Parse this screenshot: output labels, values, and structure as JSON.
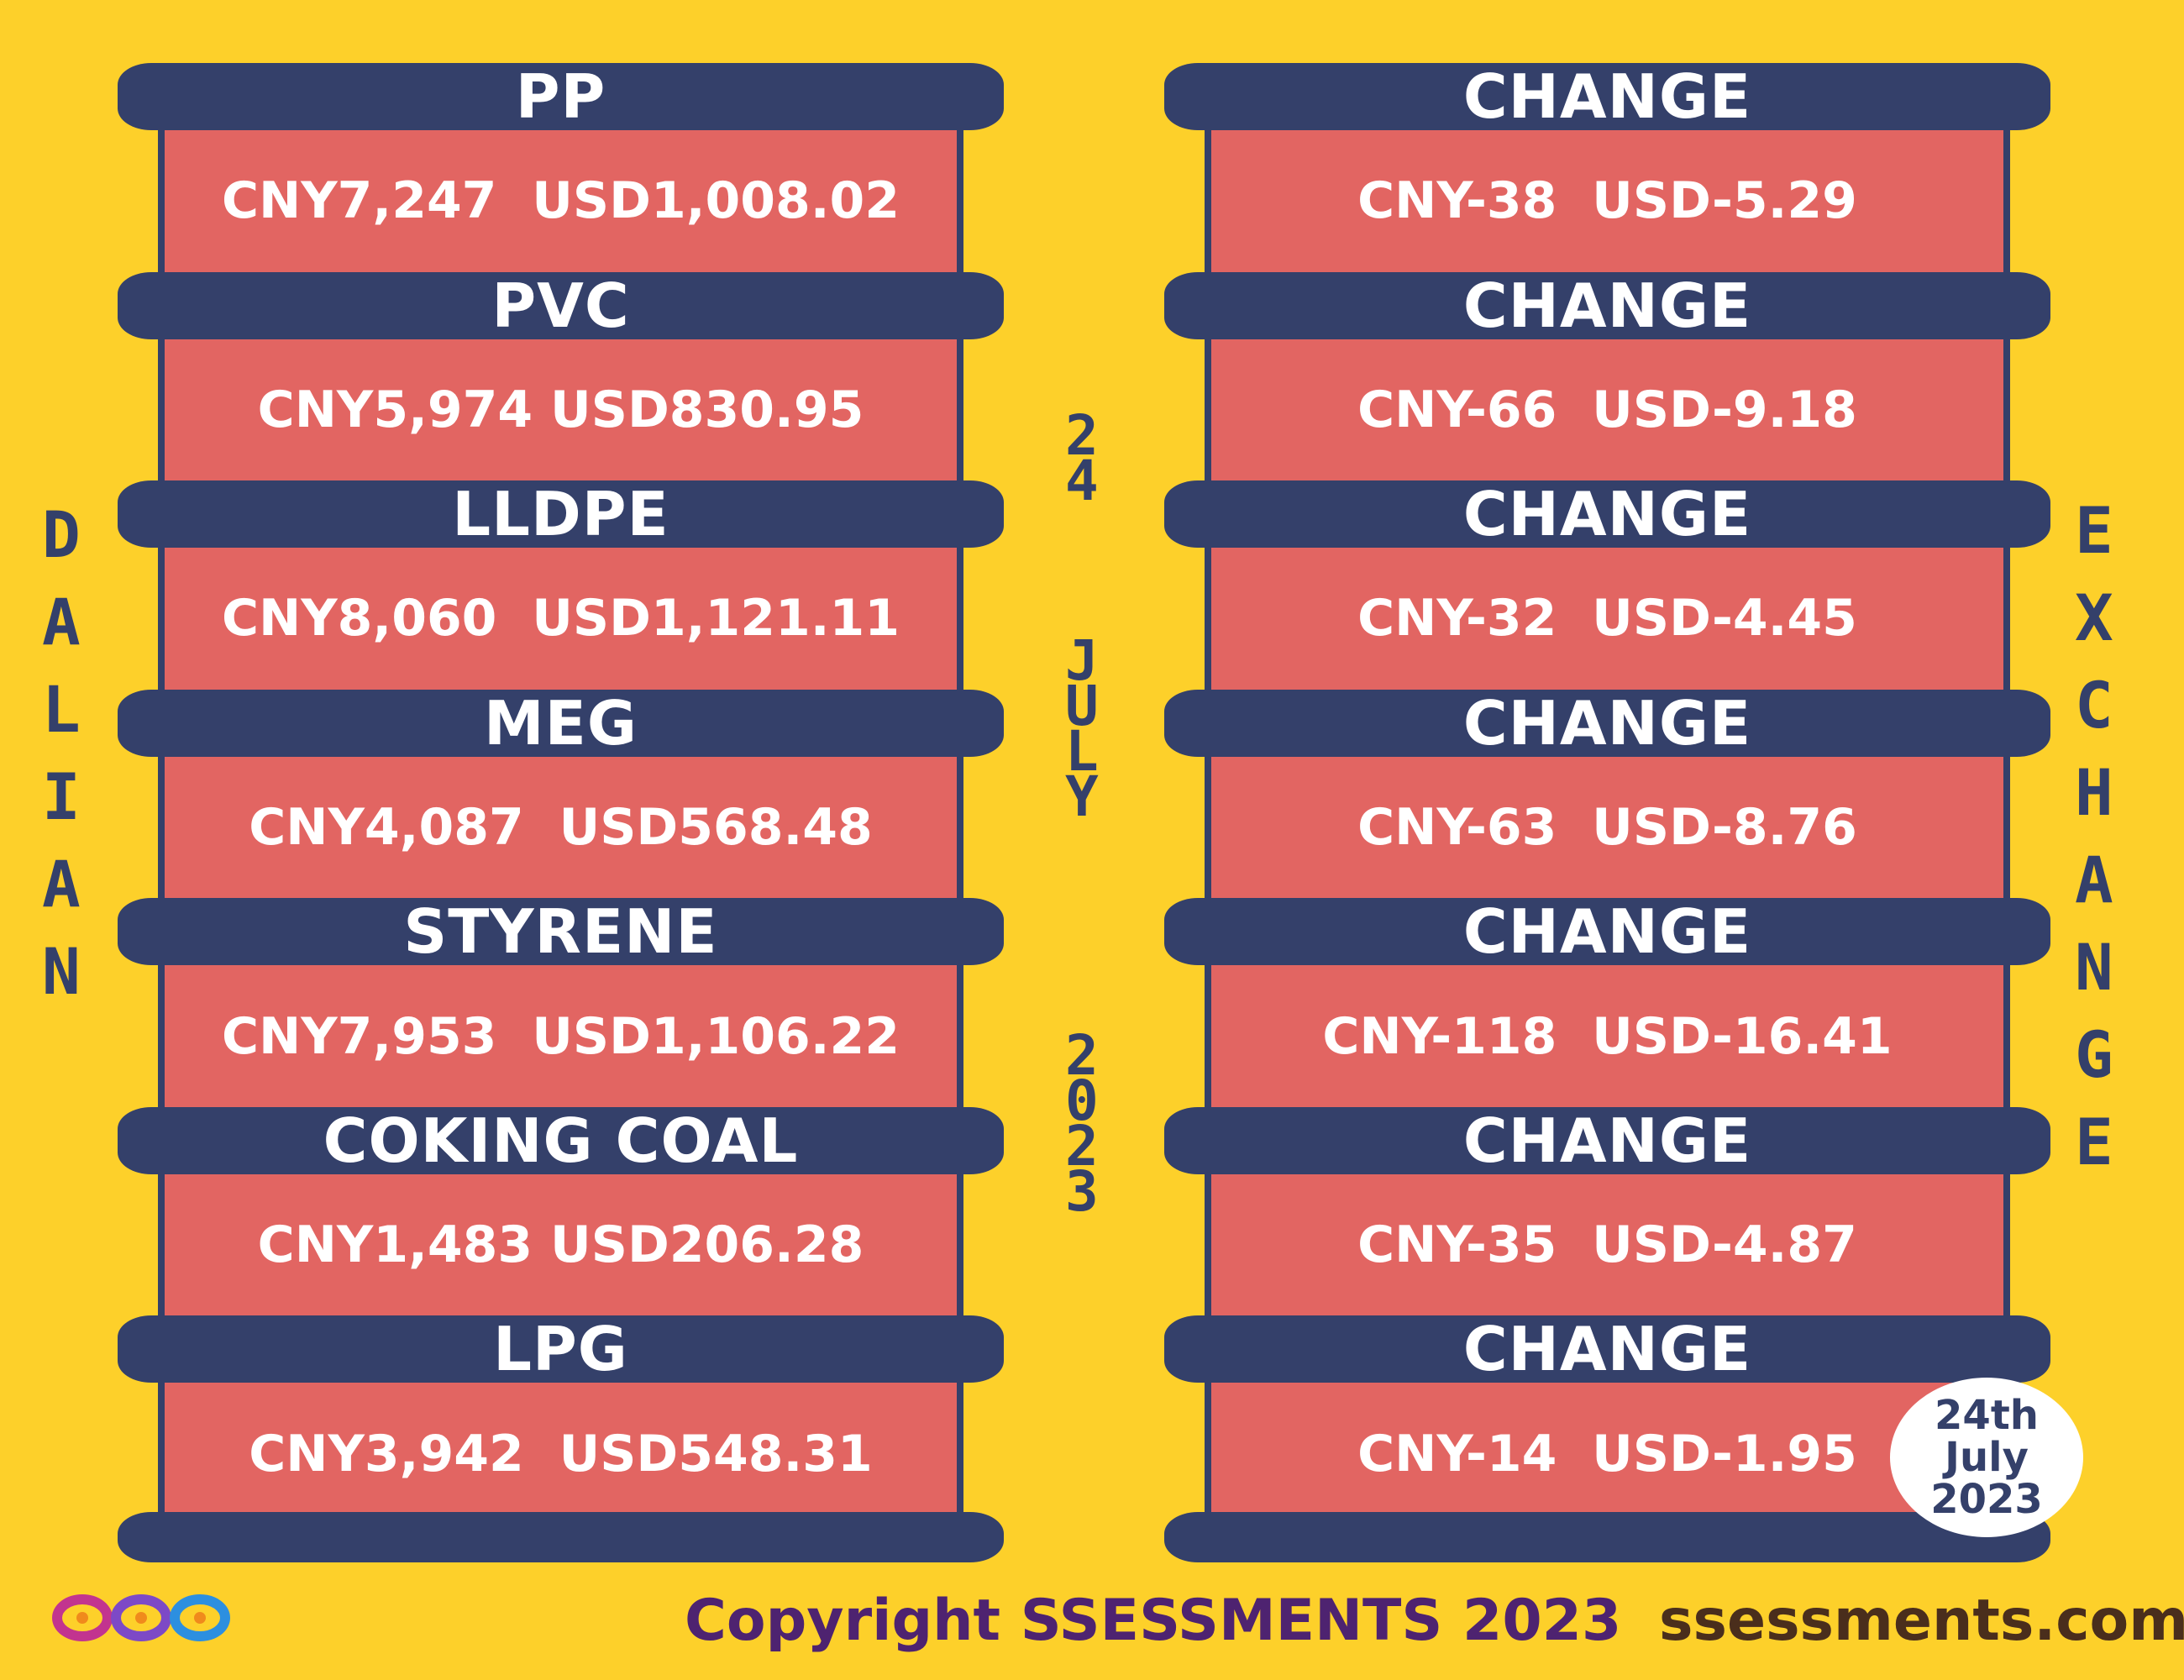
{
  "left_title": "DALIAN",
  "right_title": "EXCHANGE",
  "center_date": {
    "day": "24",
    "month": "JULY",
    "year": "2023"
  },
  "commodities": [
    {
      "name": "PP",
      "price": "CNY7,247  USD1,008.02",
      "change_label": "CHANGE",
      "change": "CNY-38  USD-5.29"
    },
    {
      "name": "PVC",
      "price": "CNY5,974 USD830.95",
      "change_label": "CHANGE",
      "change": "CNY-66  USD-9.18"
    },
    {
      "name": "LLDPE",
      "price": "CNY8,060  USD1,121.11",
      "change_label": "CHANGE",
      "change": "CNY-32  USD-4.45"
    },
    {
      "name": "MEG",
      "price": "CNY4,087  USD568.48",
      "change_label": "CHANGE",
      "change": "CNY-63  USD-8.76"
    },
    {
      "name": "STYRENE",
      "price": "CNY7,953  USD1,106.22",
      "change_label": "CHANGE",
      "change": "CNY-118  USD-16.41"
    },
    {
      "name": "COKING COAL",
      "price": "CNY1,483 USD206.28",
      "change_label": "CHANGE",
      "change": "CNY-35  USD-4.87"
    },
    {
      "name": "LPG",
      "price": "CNY3,942  USD548.31",
      "change_label": "CHANGE",
      "change": "CNY-14  USD-1.95"
    }
  ],
  "date_badge": {
    "line1": "24th",
    "line2": "July",
    "line3": "2023"
  },
  "footer": {
    "copyright": "Copyright SSESSMENTS 2023",
    "website": "ssessments.com"
  },
  "colors": {
    "background": "#FDD02A",
    "bar": "#34406A",
    "box": "#E26562"
  }
}
